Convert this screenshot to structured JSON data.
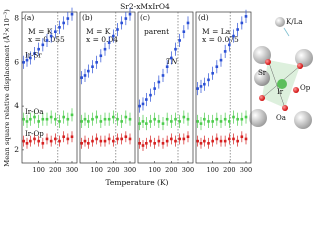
{
  "figure": {
    "title": "Sr2-xMxIrO4",
    "y_label": "Mean square relative displacement (Å²×10⁻³)",
    "x_label": "Temperature (K)"
  },
  "chart_data": [
    {
      "type": "scatter",
      "annotations": [
        "(a)",
        "M = K",
        "x = 0.055"
      ],
      "xlim": [
        0,
        330
      ],
      "xticks": [
        100,
        200,
        300
      ],
      "ylim": [
        1.4,
        8.3
      ],
      "yticks": [
        2,
        4,
        6,
        8
      ],
      "tn": 215,
      "x": [
        10,
        30,
        50,
        75,
        100,
        125,
        150,
        175,
        200,
        225,
        250,
        275,
        300
      ],
      "series": [
        {
          "name": "Ir-Sr",
          "color": "#2a4fd6",
          "error": 0.3,
          "values": [
            6.0,
            6.1,
            6.2,
            6.4,
            6.6,
            6.8,
            7.0,
            7.2,
            7.4,
            7.6,
            7.8,
            8.0,
            8.2
          ]
        },
        {
          "name": "Ir-Oa",
          "color": "#4ccc4c",
          "error": 0.3,
          "values": [
            3.4,
            3.3,
            3.4,
            3.5,
            3.3,
            3.4,
            3.4,
            3.5,
            3.4,
            3.3,
            3.5,
            3.4,
            3.6
          ]
        },
        {
          "name": "Ir-Op",
          "color": "#d62020",
          "error": 0.25,
          "values": [
            2.4,
            2.3,
            2.4,
            2.5,
            2.4,
            2.3,
            2.5,
            2.4,
            2.5,
            2.4,
            2.6,
            2.5,
            2.6
          ]
        }
      ]
    },
    {
      "type": "scatter",
      "annotations": [
        "(b)",
        "M = K",
        "x = 0.04"
      ],
      "xlim": [
        0,
        330
      ],
      "xticks": [
        100,
        200,
        300
      ],
      "ylim": [
        1.4,
        8.3
      ],
      "tn": 215,
      "x": [
        10,
        30,
        50,
        75,
        100,
        125,
        150,
        175,
        200,
        225,
        250,
        275,
        300
      ],
      "series": [
        {
          "color": "#2a4fd6",
          "error": 0.3,
          "values": [
            5.3,
            5.4,
            5.6,
            5.8,
            6.0,
            6.3,
            6.6,
            6.9,
            7.2,
            7.5,
            7.8,
            8.0,
            8.2
          ]
        },
        {
          "color": "#4ccc4c",
          "error": 0.3,
          "values": [
            3.3,
            3.4,
            3.3,
            3.4,
            3.5,
            3.3,
            3.4,
            3.4,
            3.5,
            3.4,
            3.3,
            3.5,
            3.4
          ]
        },
        {
          "color": "#d62020",
          "error": 0.25,
          "values": [
            2.3,
            2.4,
            2.3,
            2.4,
            2.5,
            2.4,
            2.4,
            2.5,
            2.4,
            2.5,
            2.5,
            2.6,
            2.5
          ]
        }
      ]
    },
    {
      "type": "scatter",
      "annotations": [
        "(c)",
        "parent"
      ],
      "tn_label": "TN",
      "xlim": [
        0,
        330
      ],
      "xticks": [
        100,
        200,
        300
      ],
      "ylim": [
        1.4,
        8.3
      ],
      "tn": 240,
      "x": [
        10,
        30,
        50,
        75,
        100,
        125,
        150,
        175,
        200,
        225,
        250,
        275,
        300
      ],
      "series": [
        {
          "color": "#2a4fd6",
          "error": 0.3,
          "values": [
            4.0,
            4.1,
            4.3,
            4.5,
            4.8,
            5.1,
            5.4,
            5.8,
            6.2,
            6.6,
            7.0,
            7.4,
            7.8
          ]
        },
        {
          "color": "#4ccc4c",
          "error": 0.3,
          "values": [
            3.2,
            3.3,
            3.2,
            3.3,
            3.4,
            3.3,
            3.2,
            3.4,
            3.3,
            3.4,
            3.3,
            3.5,
            3.4
          ]
        },
        {
          "color": "#d62020",
          "error": 0.25,
          "values": [
            2.3,
            2.2,
            2.3,
            2.4,
            2.3,
            2.4,
            2.3,
            2.4,
            2.5,
            2.4,
            2.5,
            2.5,
            2.6
          ]
        }
      ]
    },
    {
      "type": "scatter",
      "annotations": [
        "(d)",
        "M = La",
        "x = 0.075"
      ],
      "xlim": [
        0,
        330
      ],
      "xticks": [
        100,
        200,
        300
      ],
      "ylim": [
        1.4,
        8.3
      ],
      "tn": 205,
      "x": [
        10,
        30,
        50,
        75,
        100,
        125,
        150,
        175,
        200,
        225,
        250,
        275,
        300
      ],
      "series": [
        {
          "color": "#2a4fd6",
          "error": 0.3,
          "values": [
            4.8,
            4.9,
            5.0,
            5.2,
            5.5,
            5.8,
            6.1,
            6.5,
            6.8,
            7.2,
            7.5,
            7.8,
            8.1
          ]
        },
        {
          "color": "#4ccc4c",
          "error": 0.3,
          "values": [
            3.3,
            3.2,
            3.4,
            3.3,
            3.3,
            3.4,
            3.3,
            3.4,
            3.3,
            3.5,
            3.4,
            3.4,
            3.5
          ]
        },
        {
          "color": "#d62020",
          "error": 0.25,
          "values": [
            2.4,
            2.3,
            2.4,
            2.3,
            2.4,
            2.5,
            2.4,
            2.4,
            2.5,
            2.5,
            2.4,
            2.6,
            2.5
          ]
        }
      ]
    }
  ],
  "diagram": {
    "labels": [
      "K/La",
      "Sr",
      "Ir",
      "Op",
      "Oa"
    ]
  }
}
